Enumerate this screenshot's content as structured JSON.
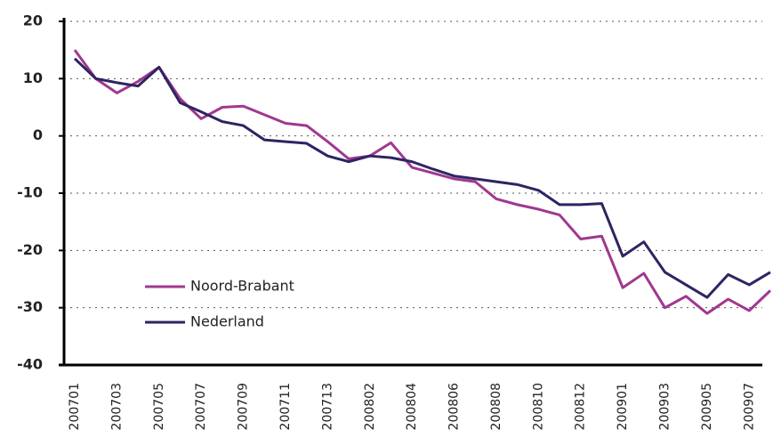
{
  "chart_data": {
    "type": "line",
    "categories": [
      "200701",
      null,
      "200703",
      null,
      "200705",
      null,
      "200707",
      null,
      "200709",
      null,
      "200711",
      null,
      "200713",
      null,
      "200802",
      null,
      "200804",
      null,
      "200806",
      null,
      "200808",
      null,
      "200810",
      null,
      "200812",
      null,
      "200901",
      null,
      "200903",
      null,
      "200905",
      null,
      "200907",
      null
    ],
    "series": [
      {
        "name": "Noord-Brabant",
        "color": "#a0388f",
        "values": [
          15,
          10,
          7.5,
          9.5,
          12,
          6.5,
          3,
          5,
          5.2,
          3.7,
          2.2,
          1.8,
          -1,
          -4,
          -3.5,
          -1.2,
          -5.5,
          -6.5,
          -7.5,
          -8,
          -11,
          -12,
          -12.8,
          -13.8,
          -18,
          -17.5,
          -26.5,
          -24,
          -30,
          -28,
          -31,
          -28.5,
          -30.5,
          -27
        ]
      },
      {
        "name": "Nederland",
        "color": "#2e2462",
        "values": [
          13.5,
          10,
          9.3,
          8.7,
          12,
          5.8,
          4.2,
          2.5,
          1.8,
          -0.7,
          -1,
          -1.3,
          -3.5,
          -4.5,
          -3.5,
          -3.8,
          -4.5,
          -5.8,
          -7,
          -7.5,
          -8,
          -8.5,
          -9.5,
          -12,
          -12,
          -11.8,
          -21,
          -18.5,
          -23.8,
          -26,
          -28.2,
          -24.2,
          -26,
          -23.8
        ]
      }
    ],
    "ylim": [
      -40,
      20
    ],
    "yticks": [
      -40,
      -30,
      -20,
      -10,
      0,
      10,
      20
    ],
    "grid": true
  }
}
